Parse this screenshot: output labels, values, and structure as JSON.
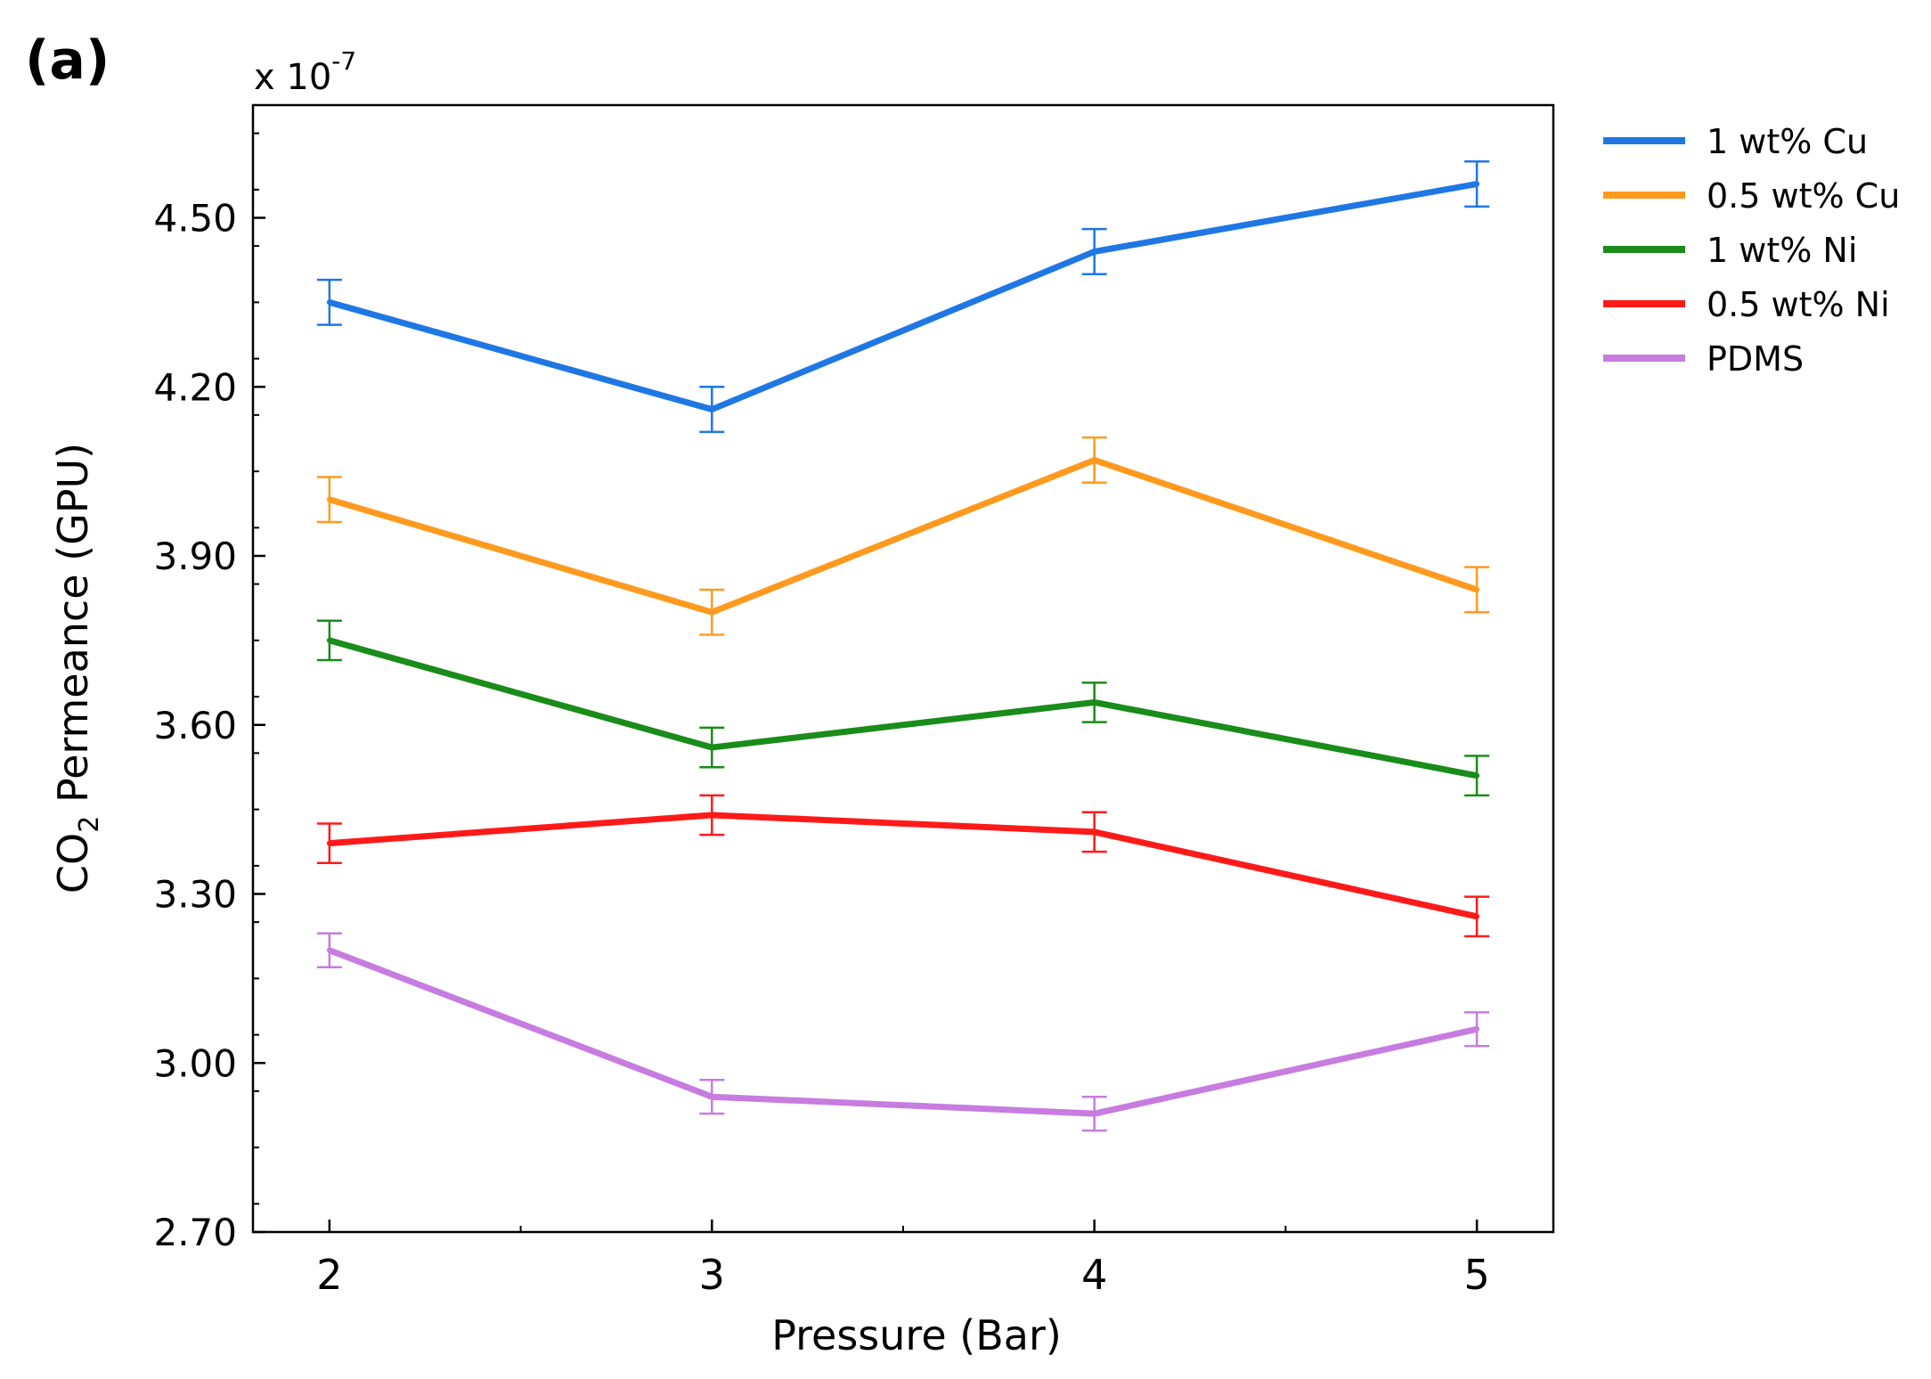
{
  "panel_label": "(a)",
  "exponent_base": "x 10",
  "exponent_power": "-7",
  "chart_data": {
    "type": "line",
    "x": [
      2,
      3,
      4,
      5
    ],
    "xlim": [
      1.8,
      5.2
    ],
    "ylim": [
      2.7,
      4.7
    ],
    "x_ticks": [
      "2",
      "3",
      "4",
      "5"
    ],
    "y_ticks": [
      "2.70",
      "3.00",
      "3.30",
      "3.60",
      "3.90",
      "4.20",
      "4.50"
    ],
    "xlabel": "Pressure (Bar)",
    "ylabel_prefix": "CO",
    "ylabel_subscript": "2",
    "ylabel_suffix": " Permeance (GPU)",
    "legend_position": "outside-right",
    "series": [
      {
        "name": "1 wt% Cu",
        "color": "#1f77e4",
        "values": [
          4.35,
          4.16,
          4.44,
          4.56
        ],
        "error": 0.04
      },
      {
        "name": "0.5 wt% Cu",
        "color": "#ff9a1f",
        "values": [
          4.0,
          3.8,
          4.07,
          3.84
        ],
        "error": 0.04
      },
      {
        "name": "1 wt% Ni",
        "color": "#1a8c1a",
        "values": [
          3.75,
          3.56,
          3.64,
          3.51
        ],
        "error": 0.035
      },
      {
        "name": "0.5 wt% Ni",
        "color": "#ff1a1a",
        "values": [
          3.39,
          3.44,
          3.41,
          3.26
        ],
        "error": 0.035
      },
      {
        "name": "PDMS",
        "color": "#c77ce0",
        "values": [
          3.2,
          2.94,
          2.91,
          3.06
        ],
        "error": 0.03
      }
    ]
  }
}
